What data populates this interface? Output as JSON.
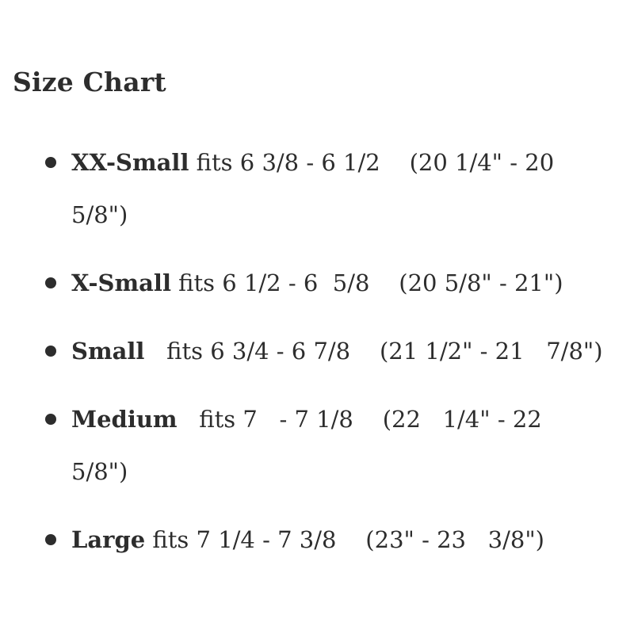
{
  "page": {
    "background_color": "#ffffff",
    "text_color": "#2d2d2d"
  },
  "heading": {
    "title": "Size Chart"
  },
  "size_chart": {
    "items": [
      {
        "name": "XX-Small",
        "details": " fits 6 3/8 - 6 1/2    (20 1/4\" - 20\n5/8\")"
      },
      {
        "name": "X-Small",
        "details": " fits 6 1/2 - 6  5/8    (20 5/8\" - 21\")"
      },
      {
        "name": "Small",
        "details": "   fits 6 3/4 - 6 7/8    (21 1/2\" - 21   7/8\")"
      },
      {
        "name": "Medium",
        "details": "   fits 7   - 7 1/8    (22   1/4\" - 22\n5/8\")"
      },
      {
        "name": "Large",
        "details": " fits 7 1/4 - 7 3/8    (23\" - 23   3/8\")"
      }
    ]
  }
}
